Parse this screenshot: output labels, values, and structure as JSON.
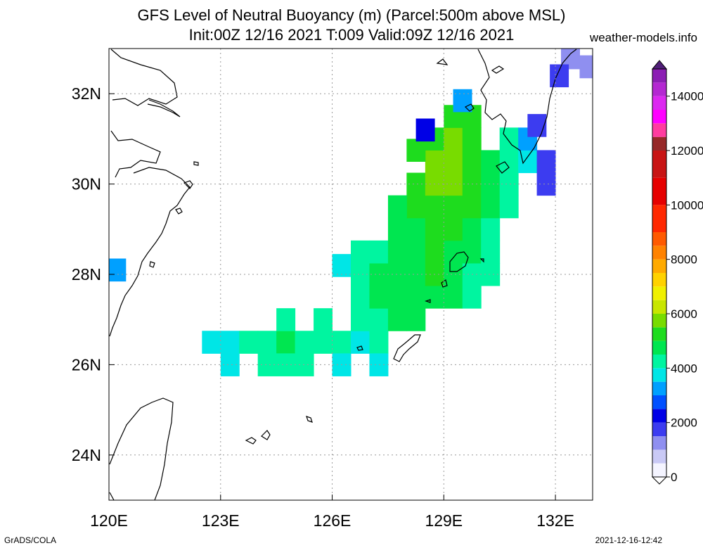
{
  "title_line1": "GFS Level of Neutral Buoyancy (m) (Parcel:500m above MSL)",
  "title_line2": "Init:00Z 12/16 2021 T:009 Valid:09Z 12/16 2021",
  "site": "weather-models.info",
  "footer_left": "GrADS/COLA",
  "footer_right": "2021-12-16-12:42",
  "map": {
    "lon_range": [
      120,
      133
    ],
    "lat_range": [
      23,
      33
    ],
    "lon_ticks": [
      {
        "v": 120,
        "label": "120E"
      },
      {
        "v": 123,
        "label": "123E"
      },
      {
        "v": 126,
        "label": "126E"
      },
      {
        "v": 129,
        "label": "129E"
      },
      {
        "v": 132,
        "label": "132E"
      }
    ],
    "lat_ticks": [
      {
        "v": 24,
        "label": "24N"
      },
      {
        "v": 26,
        "label": "26N"
      },
      {
        "v": 28,
        "label": "28N"
      },
      {
        "v": 30,
        "label": "30N"
      },
      {
        "v": 32,
        "label": "32N"
      }
    ],
    "cells": [
      {
        "lon": 122.75,
        "lat": 26.5,
        "v": 3800
      },
      {
        "lon": 123.25,
        "lat": 26.5,
        "v": 3900
      },
      {
        "lon": 123.75,
        "lat": 26.5,
        "v": 4000
      },
      {
        "lon": 124.25,
        "lat": 26.5,
        "v": 4300
      },
      {
        "lon": 124.75,
        "lat": 26.5,
        "v": 4500
      },
      {
        "lon": 125.25,
        "lat": 26.5,
        "v": 4400
      },
      {
        "lon": 125.75,
        "lat": 26.5,
        "v": 4200
      },
      {
        "lon": 126.25,
        "lat": 26.5,
        "v": 4000
      },
      {
        "lon": 126.75,
        "lat": 26.5,
        "v": 3900
      },
      {
        "lon": 127.25,
        "lat": 26.5,
        "v": 4100
      },
      {
        "lon": 123.25,
        "lat": 26.0,
        "v": 3700
      },
      {
        "lon": 124.25,
        "lat": 26.0,
        "v": 4000
      },
      {
        "lon": 124.75,
        "lat": 26.0,
        "v": 4200
      },
      {
        "lon": 125.25,
        "lat": 26.0,
        "v": 4000
      },
      {
        "lon": 126.25,
        "lat": 26.0,
        "v": 3700
      },
      {
        "lon": 127.25,
        "lat": 26.0,
        "v": 3900
      },
      {
        "lon": 124.75,
        "lat": 27.0,
        "v": 4100
      },
      {
        "lon": 125.75,
        "lat": 27.0,
        "v": 4100
      },
      {
        "lon": 126.75,
        "lat": 27.0,
        "v": 4200
      },
      {
        "lon": 127.25,
        "lat": 27.0,
        "v": 4400
      },
      {
        "lon": 127.75,
        "lat": 27.0,
        "v": 4600
      },
      {
        "lon": 128.25,
        "lat": 27.0,
        "v": 4500
      },
      {
        "lon": 126.75,
        "lat": 27.5,
        "v": 4300
      },
      {
        "lon": 127.25,
        "lat": 27.5,
        "v": 4500
      },
      {
        "lon": 127.75,
        "lat": 27.5,
        "v": 4700
      },
      {
        "lon": 128.25,
        "lat": 27.5,
        "v": 4800
      },
      {
        "lon": 128.75,
        "lat": 27.5,
        "v": 4900
      },
      {
        "lon": 129.25,
        "lat": 27.5,
        "v": 4600
      },
      {
        "lon": 129.75,
        "lat": 27.5,
        "v": 4200
      },
      {
        "lon": 126.25,
        "lat": 28.2,
        "v": 3600
      },
      {
        "lon": 126.75,
        "lat": 28.0,
        "v": 4200
      },
      {
        "lon": 127.25,
        "lat": 28.0,
        "v": 4500
      },
      {
        "lon": 127.75,
        "lat": 28.0,
        "v": 4700
      },
      {
        "lon": 128.25,
        "lat": 28.0,
        "v": 4900
      },
      {
        "lon": 128.75,
        "lat": 28.0,
        "v": 5000
      },
      {
        "lon": 129.25,
        "lat": 28.0,
        "v": 4800
      },
      {
        "lon": 129.75,
        "lat": 28.0,
        "v": 4400
      },
      {
        "lon": 130.25,
        "lat": 28.0,
        "v": 4000
      },
      {
        "lon": 126.75,
        "lat": 28.5,
        "v": 4000
      },
      {
        "lon": 127.25,
        "lat": 28.5,
        "v": 4400
      },
      {
        "lon": 127.75,
        "lat": 28.5,
        "v": 4700
      },
      {
        "lon": 128.25,
        "lat": 28.5,
        "v": 4900
      },
      {
        "lon": 128.75,
        "lat": 28.5,
        "v": 5000
      },
      {
        "lon": 129.25,
        "lat": 28.5,
        "v": 4800
      },
      {
        "lon": 129.75,
        "lat": 28.5,
        "v": 4500
      },
      {
        "lon": 130.25,
        "lat": 28.5,
        "v": 4200
      },
      {
        "lon": 127.75,
        "lat": 29.0,
        "v": 4600
      },
      {
        "lon": 128.25,
        "lat": 29.0,
        "v": 4900
      },
      {
        "lon": 128.75,
        "lat": 29.0,
        "v": 5100
      },
      {
        "lon": 129.25,
        "lat": 29.0,
        "v": 5000
      },
      {
        "lon": 129.75,
        "lat": 29.0,
        "v": 4700
      },
      {
        "lon": 130.25,
        "lat": 29.0,
        "v": 4300
      },
      {
        "lon": 128.25,
        "lat": 29.5,
        "v": 5000
      },
      {
        "lon": 128.75,
        "lat": 29.5,
        "v": 5400
      },
      {
        "lon": 129.25,
        "lat": 29.5,
        "v": 5300
      },
      {
        "lon": 129.75,
        "lat": 29.5,
        "v": 5000
      },
      {
        "lon": 130.25,
        "lat": 29.5,
        "v": 4700
      },
      {
        "lon": 130.75,
        "lat": 29.5,
        "v": 4300
      },
      {
        "lon": 128.25,
        "lat": 30.0,
        "v": 5300
      },
      {
        "lon": 128.75,
        "lat": 30.0,
        "v": 5700
      },
      {
        "lon": 129.25,
        "lat": 30.0,
        "v": 5600
      },
      {
        "lon": 129.75,
        "lat": 30.0,
        "v": 5300
      },
      {
        "lon": 130.25,
        "lat": 30.0,
        "v": 4900
      },
      {
        "lon": 130.75,
        "lat": 30.0,
        "v": 4400
      },
      {
        "lon": 128.75,
        "lat": 30.5,
        "v": 5500
      },
      {
        "lon": 129.25,
        "lat": 30.5,
        "v": 5700
      },
      {
        "lon": 129.75,
        "lat": 30.5,
        "v": 5400
      },
      {
        "lon": 130.25,
        "lat": 30.5,
        "v": 4800
      },
      {
        "lon": 130.75,
        "lat": 30.5,
        "v": 4200
      },
      {
        "lon": 131.25,
        "lat": 30.5,
        "v": 3500
      },
      {
        "lon": 128.75,
        "lat": 31.0,
        "v": 5400
      },
      {
        "lon": 129.25,
        "lat": 31.0,
        "v": 5500
      },
      {
        "lon": 129.75,
        "lat": 31.0,
        "v": 5300
      },
      {
        "lon": 130.75,
        "lat": 31.0,
        "v": 4300
      },
      {
        "lon": 131.25,
        "lat": 31.0,
        "v": 3000
      },
      {
        "lon": 129.25,
        "lat": 31.5,
        "v": 5300
      },
      {
        "lon": 129.75,
        "lat": 31.5,
        "v": 5000
      },
      {
        "lon": 128.25,
        "lat": 30.75,
        "v": 5200
      },
      {
        "lon": 127.75,
        "lat": 29.5,
        "v": 4800
      },
      {
        "lon": 131.75,
        "lat": 30.5,
        "v": 1500
      },
      {
        "lon": 131.75,
        "lat": 30.0,
        "v": 1700
      },
      {
        "lon": 131.5,
        "lat": 31.3,
        "v": 1900
      },
      {
        "lon": 128.5,
        "lat": 31.2,
        "v": 2200
      },
      {
        "lon": 129.5,
        "lat": 31.85,
        "v": 3200
      },
      {
        "lon": 132.4,
        "lat": 32.8,
        "v": 1200
      },
      {
        "lon": 132.9,
        "lat": 32.6,
        "v": 1300
      },
      {
        "lon": 132.1,
        "lat": 32.4,
        "v": 1500
      },
      {
        "lon": 120.2,
        "lat": 28.1,
        "v": 3000
      }
    ],
    "colorbar": {
      "min": 0,
      "max": 15000,
      "labels": [
        {
          "v": 0,
          "label": "0"
        },
        {
          "v": 2000,
          "label": "2000"
        },
        {
          "v": 4000,
          "label": "4000"
        },
        {
          "v": 6000,
          "label": "6000"
        },
        {
          "v": 8000,
          "label": "8000"
        },
        {
          "v": 10000,
          "label": "10000"
        },
        {
          "v": 12000,
          "label": "12000"
        },
        {
          "v": 14000,
          "label": "14000"
        }
      ],
      "stops": [
        {
          "v": 0,
          "c": "#f4f4ff"
        },
        {
          "v": 500,
          "c": "#c9c9f5"
        },
        {
          "v": 1000,
          "c": "#8f8ff0"
        },
        {
          "v": 1500,
          "c": "#3c3cf0"
        },
        {
          "v": 2000,
          "c": "#0000e6"
        },
        {
          "v": 2500,
          "c": "#0050ff"
        },
        {
          "v": 3000,
          "c": "#00a0ff"
        },
        {
          "v": 3500,
          "c": "#00e6e6"
        },
        {
          "v": 4000,
          "c": "#00f5a0"
        },
        {
          "v": 4500,
          "c": "#00e650"
        },
        {
          "v": 5000,
          "c": "#1edc1e"
        },
        {
          "v": 5500,
          "c": "#78dc00"
        },
        {
          "v": 6000,
          "c": "#c8e600"
        },
        {
          "v": 6500,
          "c": "#f0f000"
        },
        {
          "v": 7000,
          "c": "#ffd200"
        },
        {
          "v": 7500,
          "c": "#ffaa00"
        },
        {
          "v": 8000,
          "c": "#ff8200"
        },
        {
          "v": 8500,
          "c": "#ff5a00"
        },
        {
          "v": 9000,
          "c": "#ff2800"
        },
        {
          "v": 10000,
          "c": "#e60000"
        },
        {
          "v": 11000,
          "c": "#c81414"
        },
        {
          "v": 12000,
          "c": "#962828"
        },
        {
          "v": 12500,
          "c": "#ff3ca0"
        },
        {
          "v": 13000,
          "c": "#ff00ff"
        },
        {
          "v": 13500,
          "c": "#dc28f0"
        },
        {
          "v": 14000,
          "c": "#b428d2"
        },
        {
          "v": 14500,
          "c": "#8c1eb4"
        },
        {
          "v": 15000,
          "c": "#501e78"
        }
      ]
    }
  }
}
